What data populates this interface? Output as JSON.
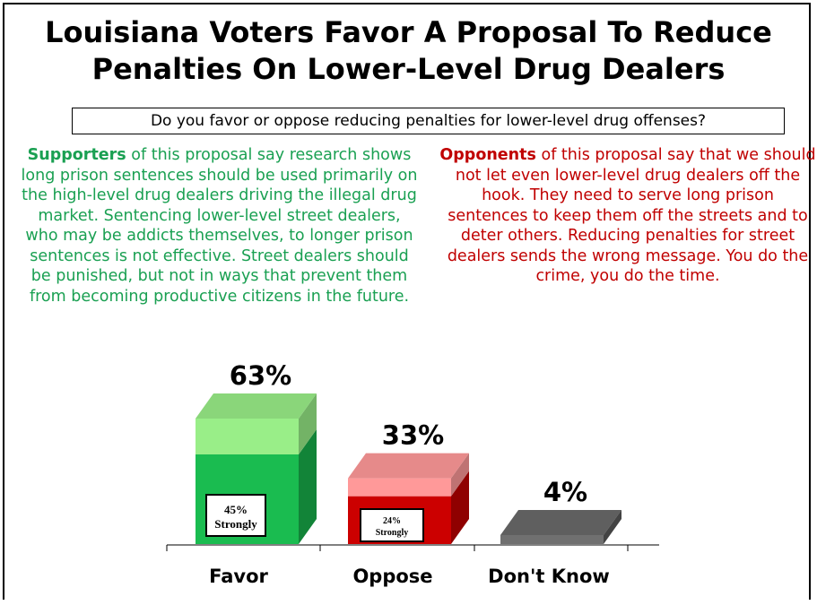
{
  "title_line1": "Louisiana Voters Favor A Proposal To Reduce",
  "title_line2": "Penalties On Lower-Level Drug Dealers",
  "question": "Do you favor or oppose reducing penalties for lower-level drug offenses?",
  "supporters": {
    "lead": "Supporters",
    "text": " of this proposal say research shows long prison sentences should be used primarily on the high-level drug dealers driving the illegal drug market. Sentencing lower-level street dealers, who may be addicts themselves, to longer prison sentences is not effective. Street dealers should be punished, but not in ways that prevent them from becoming productive citizens in the future."
  },
  "opponents": {
    "lead": "Opponents",
    "text": " of this proposal say that we should not let even lower-level drug dealers off the hook. They need to serve long prison sentences to keep them off the streets and to deter others. Reducing penalties for street dealers sends the wrong message. You do the crime, you do the time."
  },
  "colors": {
    "supporters": "#1aa052",
    "opponents": "#c00000"
  },
  "chart_data": {
    "type": "bar",
    "categories": [
      "Favor",
      "Oppose",
      "Don't Know"
    ],
    "values": [
      63,
      33,
      4
    ],
    "value_labels": [
      "63%",
      "33%",
      "4%"
    ],
    "strongly": [
      45,
      24,
      null
    ],
    "strongly_labels": [
      [
        "45%",
        "Strongly"
      ],
      [
        "24%",
        "Strongly"
      ],
      null
    ],
    "colors": {
      "Favor": {
        "total": "#99ee88",
        "strong": "#1abc50"
      },
      "Oppose": {
        "total": "#ff9999",
        "strong": "#cc0000"
      },
      "Don't Know": {
        "total": "#707070",
        "strong": "#707070"
      }
    },
    "ylim": [
      0,
      63
    ]
  }
}
